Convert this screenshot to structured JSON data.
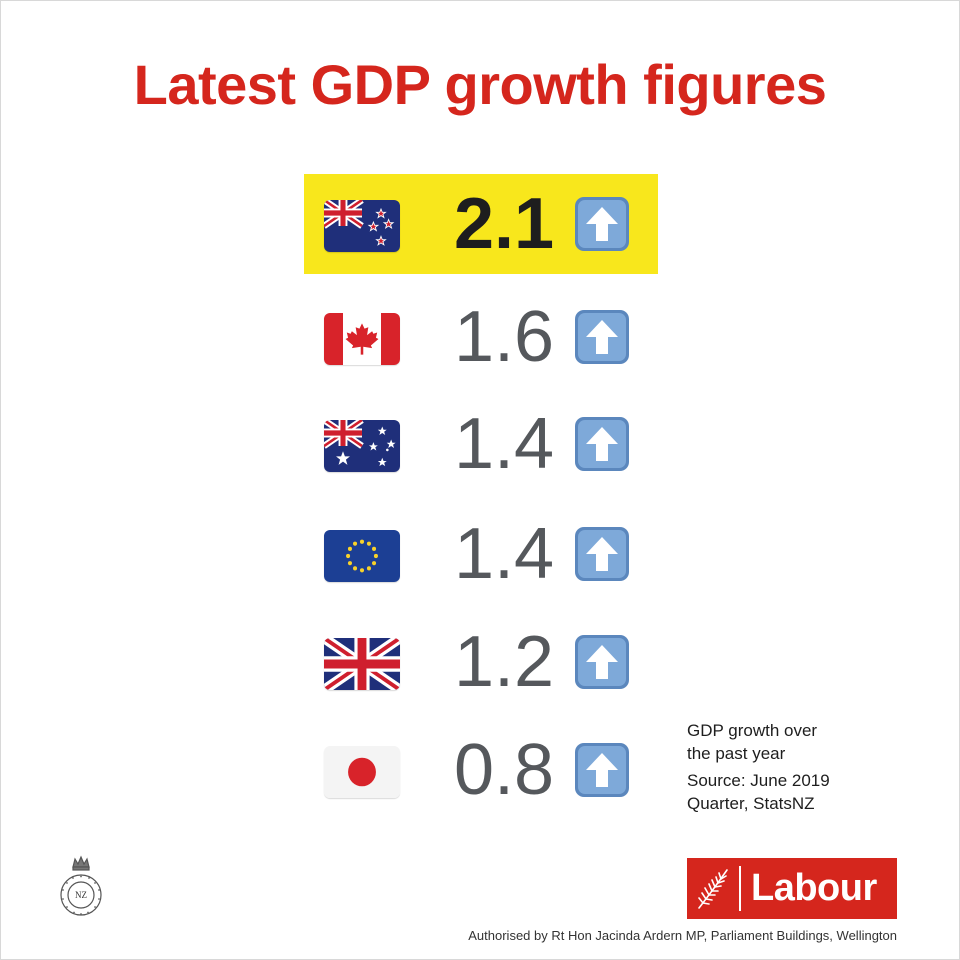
{
  "title": "Latest GDP growth figures",
  "colors": {
    "accent_red": "#d5261d",
    "highlight": "#f8e71c",
    "value_grey": "#55585c",
    "arrow_blue": "#6e9ccf"
  },
  "rows": [
    {
      "flag": "new-zealand-flag-icon",
      "value": "2.1",
      "arrow": "up-arrow-icon",
      "highlight": true
    },
    {
      "flag": "canada-flag-icon",
      "value": "1.6",
      "arrow": "up-arrow-icon",
      "highlight": false
    },
    {
      "flag": "australia-flag-icon",
      "value": "1.4",
      "arrow": "up-arrow-icon",
      "highlight": false
    },
    {
      "flag": "european-union-flag-icon",
      "value": "1.4",
      "arrow": "up-arrow-icon",
      "highlight": false
    },
    {
      "flag": "united-kingdom-flag-icon",
      "value": "1.2",
      "arrow": "up-arrow-icon",
      "highlight": false
    },
    {
      "flag": "japan-flag-icon",
      "value": "0.8",
      "arrow": "up-arrow-icon",
      "highlight": false
    }
  ],
  "note": {
    "line1": "GDP growth over",
    "line2": "the past year",
    "line3": "Source: June 2019",
    "line4": "Quarter, StatsNZ"
  },
  "seal": {
    "icon": "house-of-representatives-seal-icon",
    "label": "NZ"
  },
  "logo": {
    "icon": "fern-icon",
    "text": "Labour"
  },
  "footer": "Authorised by Rt Hon Jacinda Ardern MP, Parliament Buildings, Wellington"
}
